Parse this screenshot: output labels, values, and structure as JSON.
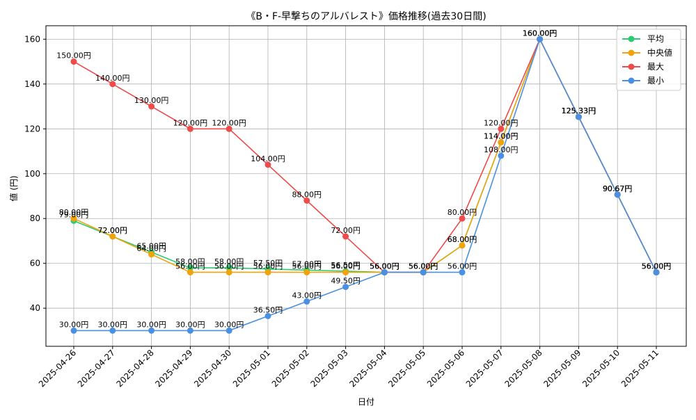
{
  "chart_data": {
    "type": "line",
    "title": "《B・F-早撃ちのアルバレスト》価格推移(過去30日間)",
    "xlabel": "日付",
    "ylabel": "値 (円)",
    "ylim": [
      23,
      166
    ],
    "yticks": [
      40,
      60,
      80,
      100,
      120,
      140,
      160
    ],
    "grid": true,
    "legend_position": "top-right",
    "label_suffix": "円",
    "categories": [
      "2025-04-26",
      "2025-04-27",
      "2025-04-28",
      "2025-04-29",
      "2025-04-30",
      "2025-05-01",
      "2025-05-02",
      "2025-05-03",
      "2025-05-04",
      "2025-05-05",
      "2025-05-06",
      "2025-05-07",
      "2025-05-08",
      "2025-05-09",
      "2025-05-10",
      "2025-05-11"
    ],
    "series": [
      {
        "name": "平均",
        "color": "#2ecc71",
        "values": [
          79.0,
          72.0,
          65.0,
          58.0,
          58.0,
          57.5,
          57.0,
          56.5,
          56.0,
          56.0,
          68.0,
          114.0,
          160.0,
          125.33,
          90.67,
          56.0
        ]
      },
      {
        "name": "中央値",
        "color": "#f0a30a",
        "values": [
          80.0,
          72.0,
          64.0,
          56.0,
          56.0,
          56.0,
          56.0,
          56.0,
          56.0,
          56.0,
          68.0,
          114.0,
          160.0,
          125.33,
          90.67,
          56.0
        ]
      },
      {
        "name": "最大",
        "color": "#ef4b4b",
        "values": [
          150.0,
          140.0,
          130.0,
          120.0,
          120.0,
          104.0,
          88.0,
          72.0,
          56.0,
          56.0,
          80.0,
          120.0,
          160.0,
          125.33,
          90.67,
          56.0
        ]
      },
      {
        "name": "最小",
        "color": "#4a90e2",
        "values": [
          30.0,
          30.0,
          30.0,
          30.0,
          30.0,
          36.5,
          43.0,
          49.5,
          56.0,
          56.0,
          56.0,
          108.0,
          160.0,
          125.33,
          90.67,
          56.0
        ]
      }
    ]
  }
}
